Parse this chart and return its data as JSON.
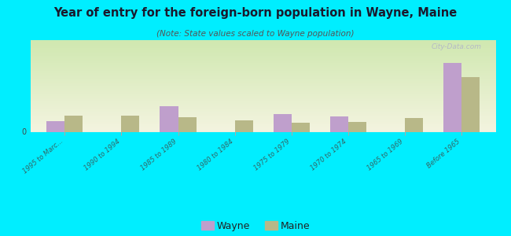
{
  "title": "Year of entry for the foreign-born population in Wayne, Maine",
  "subtitle": "(Note: State values scaled to Wayne population)",
  "categories": [
    "1995 to Marc...",
    "1990 to 1994",
    "1985 to 1989",
    "1980 to 1984",
    "1975 to 1979",
    "1970 to 1974",
    "1965 to 1969",
    "Before 1965"
  ],
  "wayne_values": [
    1.2,
    0,
    2.8,
    0,
    2.0,
    1.7,
    0,
    7.5
  ],
  "maine_values": [
    1.8,
    1.8,
    1.6,
    1.3,
    1.0,
    1.1,
    1.5,
    6.0
  ],
  "wayne_color": "#bf9fcc",
  "maine_color": "#b8b888",
  "background_top_left": "#d0e8b0",
  "background_bottom_right": "#f4f4e0",
  "bg_color": "#00eeff",
  "bar_width": 0.32,
  "ylim": [
    0,
    10
  ],
  "watermark": "City-Data.com",
  "legend_wayne": "Wayne",
  "legend_maine": "Maine",
  "zero_label": "0"
}
